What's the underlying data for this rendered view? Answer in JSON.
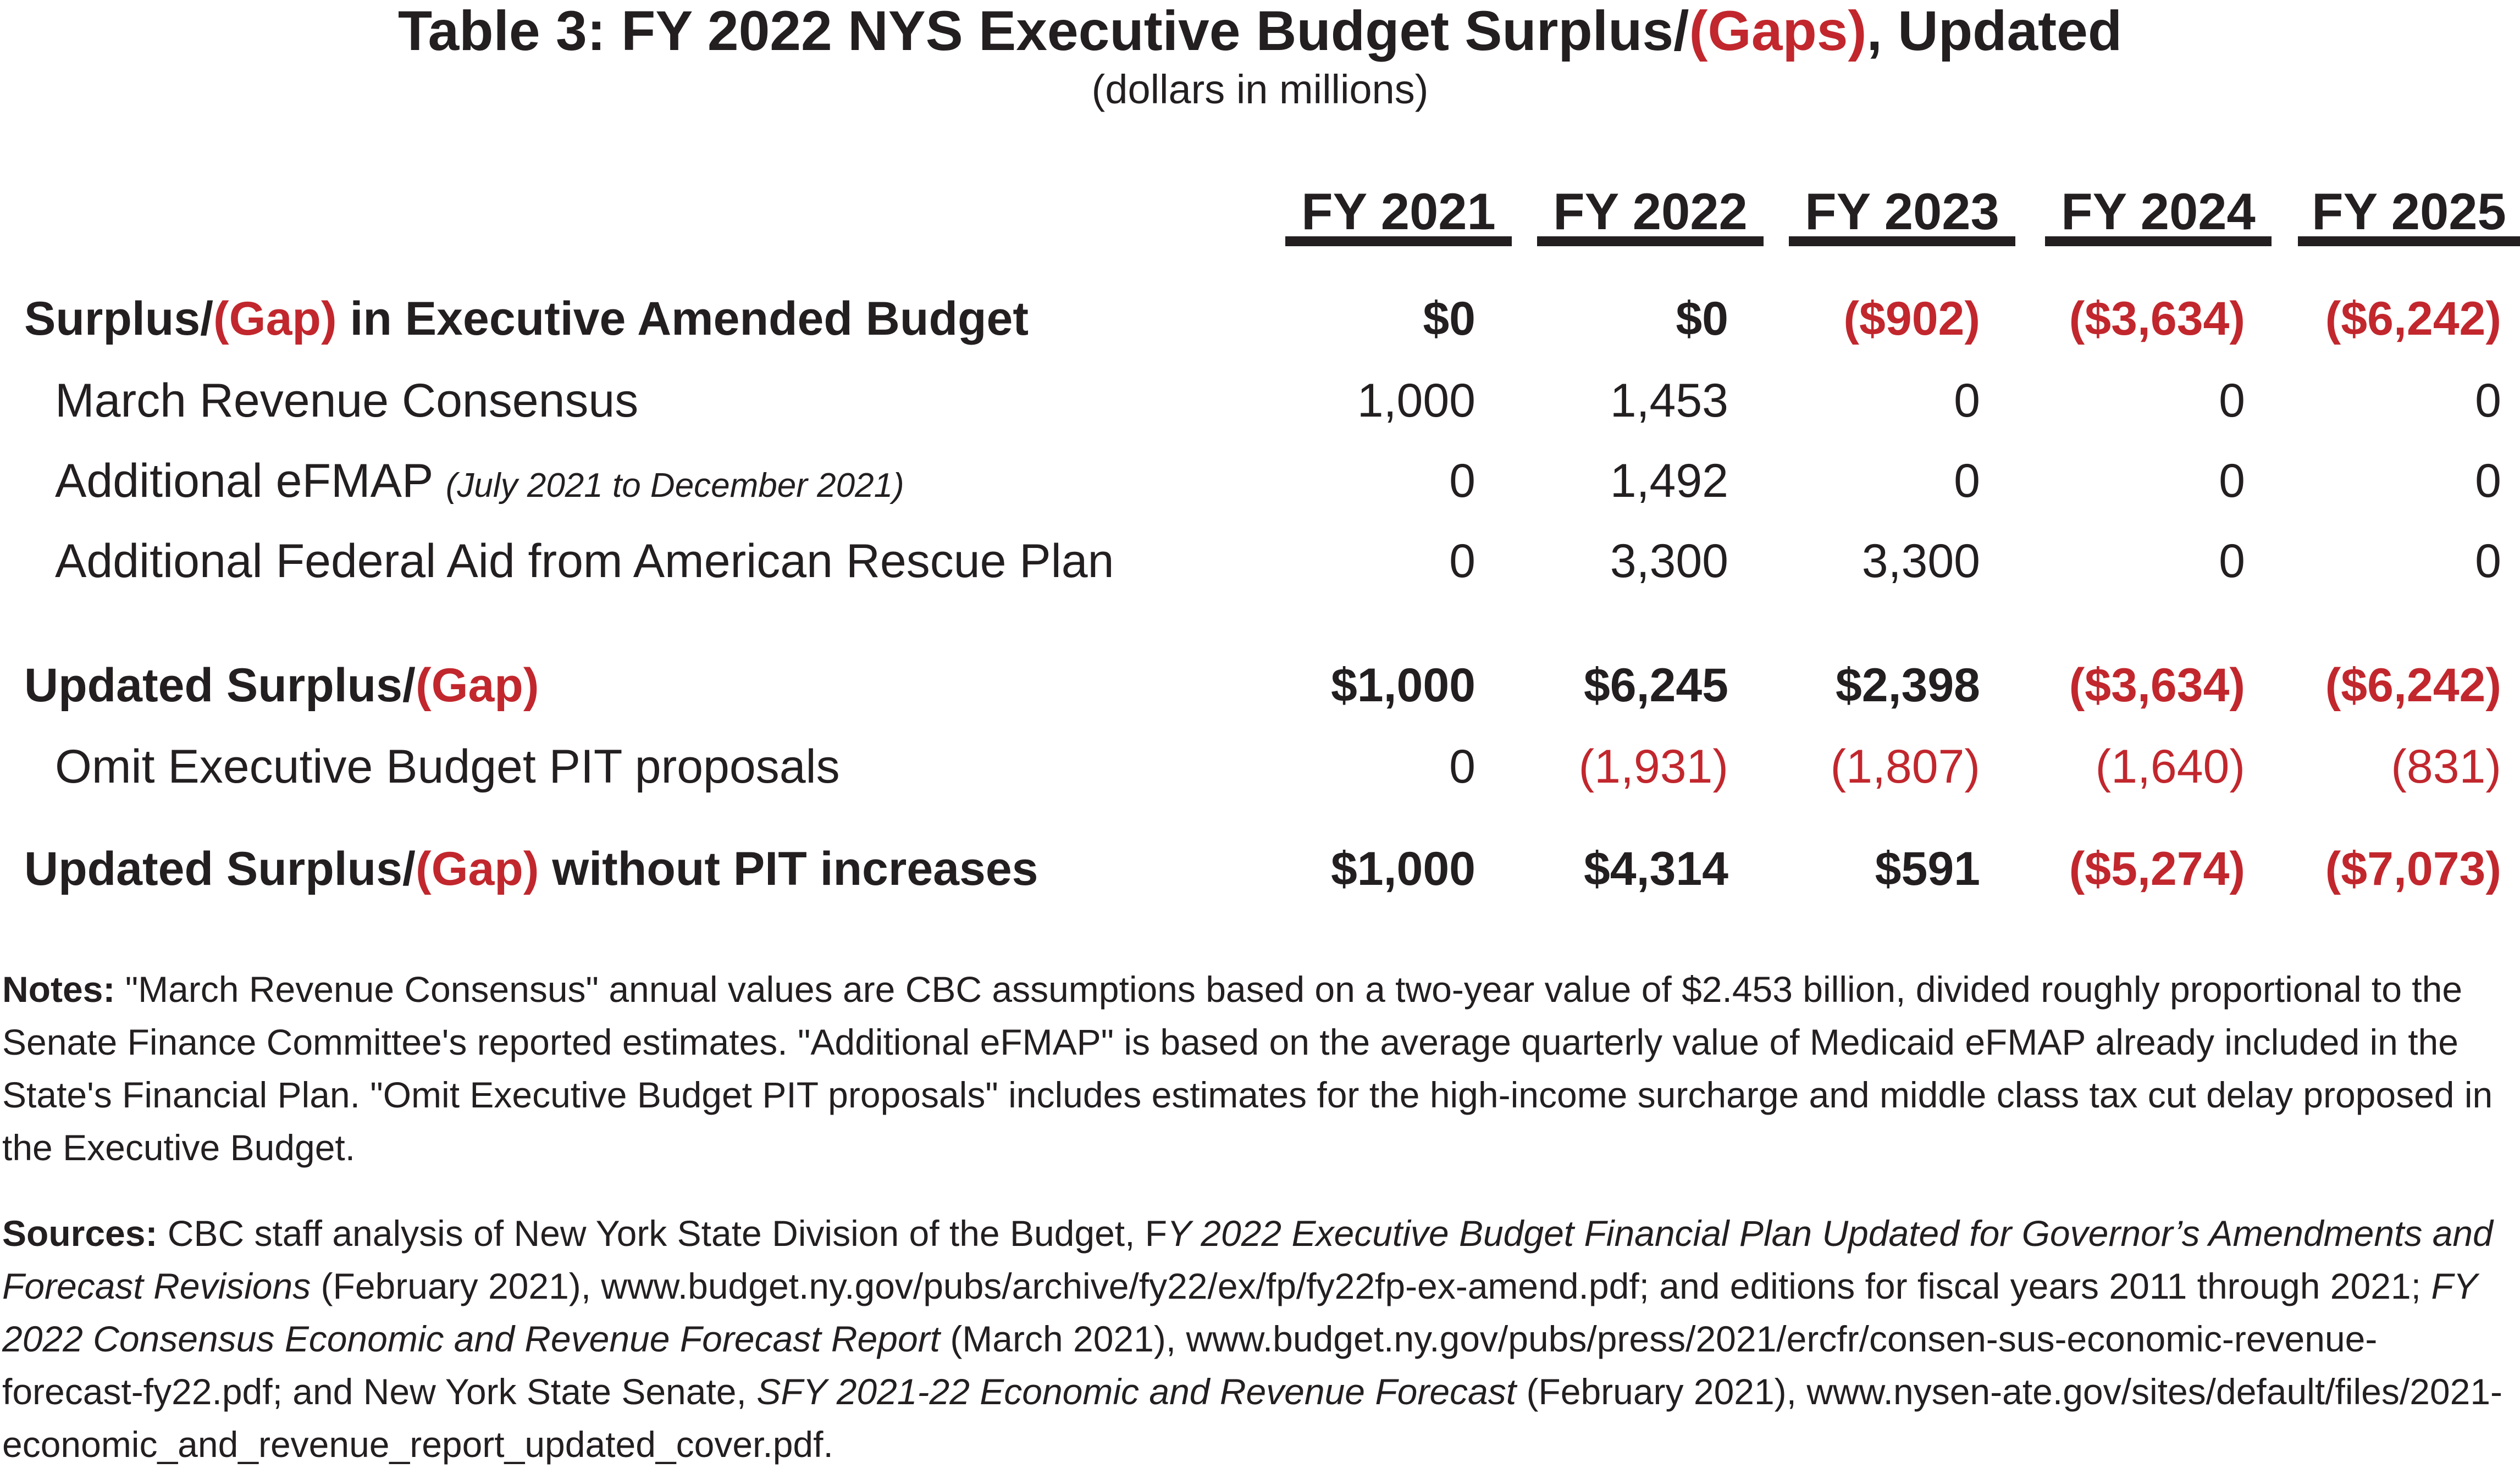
{
  "title": {
    "prefix": "Table 3: FY 2022 NYS Executive Budget Surplus/",
    "gap_word": "(Gaps)",
    "suffix": ", Updated",
    "subtitle": "(dollars in millions)"
  },
  "columns": [
    "FY 2021",
    "FY 2022",
    "FY 2023",
    "FY 2024",
    "FY 2025"
  ],
  "rows": [
    {
      "label_prefix": "Surplus/",
      "label_gap": "(Gap)",
      "label_suffix": " in Executive Amended Budget",
      "bold": true,
      "values": [
        "$0",
        "$0",
        "($902)",
        "($3,634)",
        "($6,242)"
      ],
      "negative": [
        false,
        false,
        true,
        true,
        true
      ]
    },
    {
      "label": "March Revenue Consensus",
      "bold": false,
      "values": [
        "1,000",
        "1,453",
        "0",
        "0",
        "0"
      ],
      "negative": [
        false,
        false,
        false,
        false,
        false
      ]
    },
    {
      "label": "Additional eFMAP",
      "label_note": "(July 2021 to December 2021)",
      "bold": false,
      "values": [
        "0",
        "1,492",
        "0",
        "0",
        "0"
      ],
      "negative": [
        false,
        false,
        false,
        false,
        false
      ]
    },
    {
      "label": "Additional Federal Aid from American Rescue Plan",
      "bold": false,
      "values": [
        "0",
        "3,300",
        "3,300",
        "0",
        "0"
      ],
      "negative": [
        false,
        false,
        false,
        false,
        false
      ]
    },
    {
      "label_prefix": "Updated Surplus/",
      "label_gap": "(Gap)",
      "label_suffix": "",
      "bold": true,
      "values": [
        "$1,000",
        "$6,245",
        "$2,398",
        "($3,634)",
        "($6,242)"
      ],
      "negative": [
        false,
        false,
        false,
        true,
        true
      ]
    },
    {
      "label": "Omit Executive Budget PIT proposals",
      "bold": false,
      "values": [
        "0",
        "(1,931)",
        "(1,807)",
        "(1,640)",
        "(831)"
      ],
      "negative": [
        false,
        true,
        true,
        true,
        true
      ]
    },
    {
      "label_prefix": "Updated Surplus/",
      "label_gap": "(Gap)",
      "label_suffix": " without PIT increases",
      "bold": true,
      "values": [
        "$1,000",
        "$4,314",
        "$591",
        "($5,274)",
        "($7,073)"
      ],
      "negative": [
        false,
        false,
        false,
        true,
        true
      ]
    }
  ],
  "notes": {
    "heading": "Notes:",
    "text": "  \"March Revenue Consensus\" annual values are CBC assumptions based on a two-year value of $2.453 billion, divided roughly proportional to the Senate Finance Committee's reported estimates. \"Additional eFMAP\" is based on the average quarterly value of Medicaid eFMAP already included in the State's Financial Plan. \"Omit Executive Budget PIT proposals\" includes estimates for the high-income surcharge and middle class tax cut delay proposed in the Executive Budget."
  },
  "sources": {
    "heading": "Sources:",
    "part1": " CBC staff analysis of New York State Division of the Budget, F",
    "title1": "Y 2022 Executive Budget Financial Plan Updated for Governor’s Amendments and Forecast Revisions",
    "part2": " (February 2021), www.budget.ny.gov/pubs/archive/fy22/ex/fp/fy22fp-ex-amend.pdf; and editions for fiscal years 2011 through 2021; ",
    "title2": "FY 2022 Consensus Economic and Revenue Forecast Report",
    "part3": " (March 2021), www.budget.ny.gov/pubs/press/2021/ercfr/consen-sus-economic-revenue-forecast-fy22.pdf; and New York State Senate, ",
    "title3": "SFY 2021-22 Economic and Revenue Forecast",
    "part4": " (February 2021), www.nysen-ate.gov/sites/default/files/2021-economic_and_revenue_report_updated_cover.pdf."
  },
  "colors": {
    "text": "#231f20",
    "negative": "#c1272d"
  }
}
